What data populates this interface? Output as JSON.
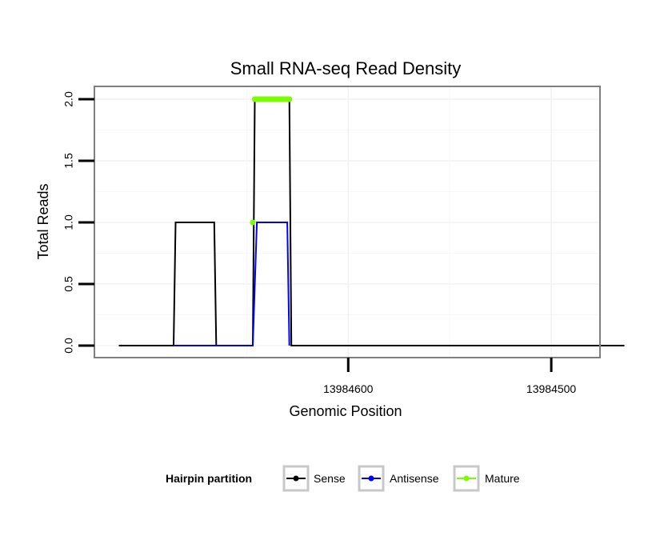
{
  "chart_data": {
    "type": "line",
    "title": "Small RNA-seq Read Density",
    "xlabel": "Genomic Position",
    "ylabel": "Total Reads",
    "x_reversed": true,
    "xlim": [
      13984725,
      13984476
    ],
    "ylim": [
      0,
      2
    ],
    "x_ticks": [
      13984600,
      13984500
    ],
    "x_tick_labels": [
      "13984600",
      "13984500"
    ],
    "y_ticks": [
      0,
      0.5,
      1,
      1.5,
      2
    ],
    "y_tick_labels": [
      "0.0",
      "0.5",
      "1.0",
      "1.5",
      "2.0"
    ],
    "legend": {
      "title": "Hairpin partition",
      "position": "bottom",
      "entries": [
        "Sense",
        "Antisense",
        "Mature"
      ]
    },
    "series": [
      {
        "name": "Sense",
        "color": "#000000",
        "points": [
          [
            13984713,
            0
          ],
          [
            13984686,
            0
          ],
          [
            13984685,
            1
          ],
          [
            13984666,
            1
          ],
          [
            13984665,
            0
          ],
          [
            13984647,
            0
          ],
          [
            13984646,
            2
          ],
          [
            13984629,
            2
          ],
          [
            13984628,
            0
          ],
          [
            13984464,
            0
          ]
        ]
      },
      {
        "name": "Antisense",
        "color": "#0000ff",
        "points": [
          [
            13984686,
            0
          ],
          [
            13984647,
            0
          ],
          [
            13984645,
            1
          ],
          [
            13984630,
            1
          ],
          [
            13984629,
            0
          ]
        ]
      },
      {
        "name": "Mature",
        "color": "#7cfc00",
        "points": [
          [
            13984646,
            2
          ],
          [
            13984629,
            2
          ]
        ],
        "extra_points": [
          [
            13984647,
            1
          ]
        ]
      }
    ]
  }
}
